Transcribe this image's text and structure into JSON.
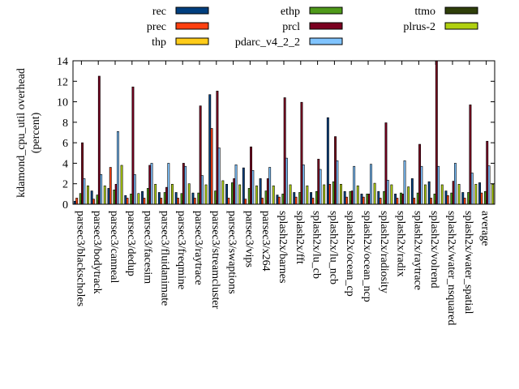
{
  "chart_data": {
    "type": "bar",
    "title": "",
    "xlabel": "",
    "ylabel": [
      "kdamond_cpu_util overhead",
      "(percent)"
    ],
    "ylim": [
      0,
      14
    ],
    "yticks": [
      0,
      2,
      4,
      6,
      8,
      10,
      12,
      14
    ],
    "grid": false,
    "legend_position": "top",
    "categories": [
      "parsec3/blackscholes",
      "parsec3/bodytrack",
      "parsec3/canneal",
      "parsec3/dedup",
      "parsec3/facesim",
      "parsec3/fluidanimate",
      "parsec3/freqmine",
      "parsec3/raytrace",
      "parsec3/streamcluster",
      "parsec3/swaptions",
      "parsec3/vips",
      "parsec3/x264",
      "splash2x/barnes",
      "splash2x/fft",
      "splash2x/lu_cb",
      "splash2x/lu_ncb",
      "splash2x/ocean_cp",
      "splash2x/ocean_ncp",
      "splash2x/radiosity",
      "splash2x/radix",
      "splash2x/raytrace",
      "splash2x/volrend",
      "splash2x/water_nsquared",
      "splash2x/water_spatial",
      "average"
    ],
    "series": [
      {
        "name": "rec",
        "color": "#003f7f",
        "values": [
          0.3,
          1.3,
          1.55,
          0.85,
          1.25,
          1.15,
          1.15,
          1.1,
          10.7,
          1.95,
          3.55,
          2.5,
          0.9,
          1.15,
          1.15,
          8.45,
          1.25,
          1.0,
          1.25,
          1.0,
          2.5,
          2.2,
          1.3,
          1.15,
          2.1
        ]
      },
      {
        "name": "prec",
        "color": "#ff4010",
        "values": [
          0.6,
          0.5,
          3.6,
          0.6,
          0.6,
          0.6,
          0.6,
          0.6,
          7.4,
          0.6,
          0.5,
          0.6,
          0.7,
          0.7,
          0.6,
          1.95,
          0.7,
          0.7,
          0.6,
          0.6,
          0.6,
          0.6,
          0.85,
          0.6,
          1.1
        ]
      },
      {
        "name": "thp",
        "color": "#ffcc1a",
        "values": [
          0,
          0,
          0,
          0,
          0,
          0,
          0,
          0,
          0,
          0,
          0,
          0,
          0,
          0,
          0,
          0,
          0,
          0,
          0,
          0,
          0,
          0,
          0,
          0,
          0
        ]
      },
      {
        "name": "ethp",
        "color": "#4f9a1a",
        "values": [
          1.05,
          0.9,
          1.4,
          1.0,
          1.55,
          1.15,
          1.05,
          1.1,
          1.3,
          2.1,
          1.55,
          1.3,
          1.0,
          1.15,
          1.25,
          2.2,
          1.25,
          1.0,
          1.25,
          1.1,
          1.1,
          1.0,
          1.1,
          1.15,
          1.25
        ]
      },
      {
        "name": "prcl",
        "color": "#7a0020",
        "values": [
          6.0,
          12.5,
          1.95,
          11.45,
          3.8,
          1.65,
          4.0,
          9.6,
          11.05,
          2.5,
          5.6,
          2.5,
          10.4,
          9.95,
          4.4,
          6.6,
          1.3,
          1.0,
          7.95,
          1.0,
          5.85,
          14.5,
          2.25,
          9.7,
          6.15
        ]
      },
      {
        "name": "pdarc_v4_2_2",
        "color": "#80c4ff",
        "values": [
          2.5,
          2.9,
          7.1,
          2.9,
          4.0,
          4.0,
          3.7,
          2.8,
          5.5,
          3.85,
          3.3,
          3.6,
          4.5,
          3.85,
          3.4,
          4.25,
          3.7,
          3.9,
          2.35,
          4.25,
          3.7,
          3.7,
          4.0,
          3.05,
          3.75
        ]
      },
      {
        "name": "ttmo",
        "color": "#2f3f0a",
        "values": [
          0,
          0,
          0,
          0,
          0,
          0,
          0,
          0,
          0,
          0,
          0,
          0,
          0,
          0,
          0,
          0,
          0,
          0,
          0,
          0,
          0,
          0,
          0,
          0,
          0
        ]
      },
      {
        "name": "plrus-2",
        "color": "#b0d010",
        "values": [
          1.8,
          1.8,
          3.8,
          1.05,
          1.95,
          1.95,
          2.0,
          1.9,
          2.3,
          1.9,
          1.8,
          1.8,
          1.9,
          1.8,
          1.9,
          1.95,
          1.8,
          2.05,
          1.9,
          1.7,
          1.9,
          1.9,
          1.95,
          1.95,
          1.95
        ]
      }
    ]
  }
}
